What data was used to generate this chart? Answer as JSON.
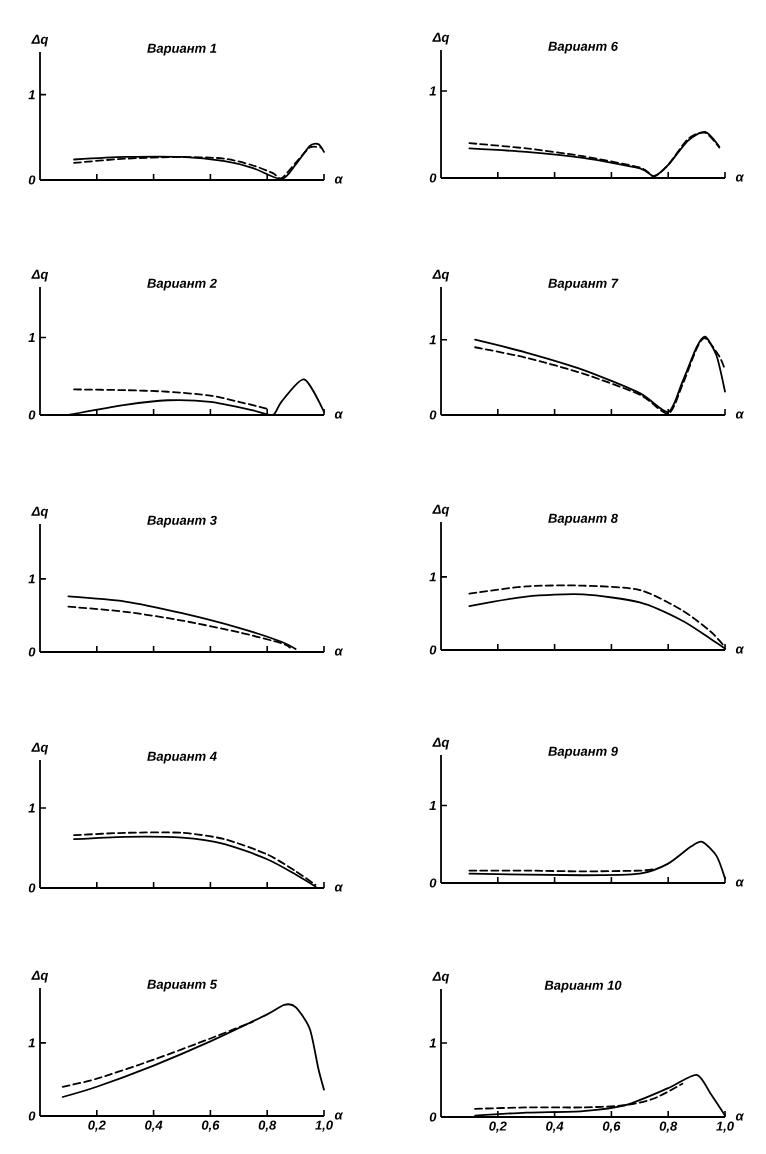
{
  "chart_data": [
    {
      "type": "line",
      "title": "Вариант 1",
      "xlabel": "α",
      "ylabel": "Δq",
      "xlim": [
        0,
        1
      ],
      "ylim": [
        0,
        1.5
      ],
      "xticks": [
        0.2,
        0.4,
        0.6,
        0.8,
        1.0
      ],
      "yticks": [
        0,
        1
      ],
      "tick_labels": "y",
      "series": [
        {
          "color": "#000000",
          "line_style": "solid",
          "x": [
            0.12,
            0.3,
            0.5,
            0.65,
            0.75,
            0.85,
            0.9,
            0.95,
            0.98,
            1.0
          ],
          "values": [
            0.24,
            0.27,
            0.27,
            0.22,
            0.14,
            0.01,
            0.18,
            0.4,
            0.42,
            0.33
          ]
        },
        {
          "color": "#000000",
          "line_style": "dashed",
          "x": [
            0.12,
            0.3,
            0.5,
            0.65,
            0.75,
            0.82,
            0.85,
            0.9,
            0.95,
            0.99
          ],
          "values": [
            0.2,
            0.25,
            0.27,
            0.25,
            0.17,
            0.08,
            0.02,
            0.2,
            0.38,
            0.38
          ]
        }
      ]
    },
    {
      "type": "line",
      "title": "Вариант 2",
      "xlabel": "α",
      "ylabel": "Δq",
      "xlim": [
        0,
        1
      ],
      "ylim": [
        0,
        1.65
      ],
      "xticks": [
        0.2,
        0.4,
        0.6,
        0.8,
        1.0
      ],
      "yticks": [
        0,
        1
      ],
      "tick_labels": "y",
      "series": [
        {
          "color": "#000000",
          "line_style": "solid",
          "x": [
            0.1,
            0.3,
            0.45,
            0.6,
            0.75,
            0.82,
            0.85,
            0.93,
            1.0
          ],
          "values": [
            0,
            0.13,
            0.19,
            0.17,
            0.06,
            0,
            0.17,
            0.46,
            0.04
          ]
        },
        {
          "color": "#000000",
          "line_style": "dashed",
          "x": [
            0.12,
            0.3,
            0.45,
            0.6,
            0.7,
            0.8
          ],
          "values": [
            0.33,
            0.32,
            0.3,
            0.25,
            0.17,
            0.08
          ]
        }
      ]
    },
    {
      "type": "line",
      "title": "Вариант 3",
      "xlabel": "α",
      "ylabel": "Δq",
      "xlim": [
        0,
        1
      ],
      "ylim": [
        0,
        1.75
      ],
      "xticks": [
        0.2,
        0.4,
        0.6,
        0.8,
        1.0
      ],
      "yticks": [
        0,
        1
      ],
      "tick_labels": "y",
      "series": [
        {
          "color": "#000000",
          "line_style": "solid",
          "x": [
            0.1,
            0.3,
            0.5,
            0.7,
            0.85,
            0.9
          ],
          "values": [
            0.76,
            0.69,
            0.53,
            0.33,
            0.14,
            0.04
          ]
        },
        {
          "color": "#000000",
          "line_style": "dashed",
          "x": [
            0.1,
            0.3,
            0.5,
            0.7,
            0.85,
            0.88
          ],
          "values": [
            0.62,
            0.55,
            0.43,
            0.27,
            0.12,
            0.06
          ]
        }
      ]
    },
    {
      "type": "line",
      "title": "Вариант 4",
      "xlabel": "α",
      "ylabel": "Δq",
      "xlim": [
        0,
        1
      ],
      "ylim": [
        0,
        1.6
      ],
      "xticks": [
        0.2,
        0.4,
        0.6,
        0.8,
        1.0
      ],
      "yticks": [
        0,
        1
      ],
      "tick_labels": "y",
      "series": [
        {
          "color": "#000000",
          "line_style": "solid",
          "x": [
            0.12,
            0.3,
            0.5,
            0.65,
            0.8,
            0.9,
            0.97
          ],
          "values": [
            0.61,
            0.64,
            0.63,
            0.55,
            0.36,
            0.17,
            0.02
          ]
        },
        {
          "color": "#000000",
          "line_style": "dashed",
          "x": [
            0.12,
            0.3,
            0.5,
            0.65,
            0.8,
            0.9,
            0.97
          ],
          "values": [
            0.66,
            0.69,
            0.69,
            0.61,
            0.42,
            0.21,
            0.04
          ]
        }
      ]
    },
    {
      "type": "line",
      "title": "Вариант 5",
      "xlabel": "α",
      "ylabel": "Δq",
      "xlim": [
        0,
        1
      ],
      "ylim": [
        0,
        1.75
      ],
      "xticks": [
        {
          "value": 0.2,
          "label": "0,2"
        },
        {
          "value": 0.4,
          "label": "0,4"
        },
        {
          "value": 0.6,
          "label": "0,6"
        },
        {
          "value": 0.8,
          "label": "0,8"
        },
        {
          "value": 1.0,
          "label": "1,0"
        }
      ],
      "yticks": [
        0,
        1
      ],
      "series": [
        {
          "color": "#000000",
          "line_style": "solid",
          "x": [
            0.08,
            0.2,
            0.4,
            0.6,
            0.8,
            0.86,
            0.9,
            0.95,
            0.98,
            1.0
          ],
          "values": [
            0.26,
            0.4,
            0.69,
            1.02,
            1.39,
            1.52,
            1.49,
            1.19,
            0.65,
            0.36
          ]
        },
        {
          "color": "#000000",
          "line_style": "dashed",
          "x": [
            0.08,
            0.2,
            0.4,
            0.6,
            0.75
          ],
          "values": [
            0.4,
            0.51,
            0.77,
            1.06,
            1.29
          ]
        }
      ]
    },
    {
      "type": "line",
      "title": "Вариант 6",
      "xlabel": "α",
      "ylabel": "Δq",
      "xlim": [
        0,
        1
      ],
      "ylim": [
        0,
        1.47
      ],
      "xticks": [
        0.2,
        0.4,
        0.6,
        0.8,
        1.0
      ],
      "yticks": [
        0,
        1
      ],
      "tick_labels": "y",
      "series": [
        {
          "color": "#000000",
          "line_style": "solid",
          "x": [
            0.1,
            0.3,
            0.5,
            0.7,
            0.75,
            0.8,
            0.87,
            0.93,
            0.98
          ],
          "values": [
            0.34,
            0.3,
            0.23,
            0.11,
            0.02,
            0.15,
            0.43,
            0.53,
            0.36
          ]
        },
        {
          "color": "#000000",
          "line_style": "dashed",
          "x": [
            0.1,
            0.3,
            0.5,
            0.7,
            0.75,
            0.8,
            0.87,
            0.93,
            0.98
          ],
          "values": [
            0.4,
            0.34,
            0.25,
            0.12,
            0.02,
            0.15,
            0.45,
            0.52,
            0.35
          ]
        }
      ]
    },
    {
      "type": "line",
      "title": "Вариант 7",
      "xlabel": "α",
      "ylabel": "Δq",
      "xlim": [
        0,
        1
      ],
      "ylim": [
        0,
        1.7
      ],
      "xticks": [
        0.2,
        0.4,
        0.6,
        0.8,
        1.0
      ],
      "yticks": [
        0,
        1
      ],
      "tick_labels": "y",
      "series": [
        {
          "color": "#000000",
          "line_style": "solid",
          "x": [
            0.12,
            0.3,
            0.5,
            0.7,
            0.8,
            0.85,
            0.9,
            0.93,
            0.97,
            1.0
          ],
          "values": [
            1.0,
            0.83,
            0.6,
            0.29,
            0.04,
            0.44,
            0.9,
            1.04,
            0.79,
            0.31
          ]
        },
        {
          "color": "#000000",
          "line_style": "dashed",
          "x": [
            0.12,
            0.3,
            0.5,
            0.7,
            0.8,
            0.85,
            0.9,
            0.93,
            0.98,
            1.0
          ],
          "values": [
            0.9,
            0.76,
            0.55,
            0.27,
            0.02,
            0.4,
            0.88,
            1.02,
            0.78,
            0.6
          ]
        }
      ]
    },
    {
      "type": "line",
      "title": "Вариант 8",
      "xlabel": "α",
      "ylabel": "Δq",
      "xlim": [
        0,
        1
      ],
      "ylim": [
        0,
        1.75
      ],
      "xticks": [
        0.2,
        0.4,
        0.6,
        0.8,
        1.0
      ],
      "yticks": [
        0,
        1
      ],
      "tick_labels": "y",
      "series": [
        {
          "color": "#000000",
          "line_style": "solid",
          "x": [
            0.1,
            0.3,
            0.5,
            0.7,
            0.85,
            0.95,
            1.0
          ],
          "values": [
            0.6,
            0.73,
            0.76,
            0.65,
            0.4,
            0.15,
            0.02
          ]
        },
        {
          "color": "#000000",
          "line_style": "dashed",
          "x": [
            0.1,
            0.3,
            0.5,
            0.7,
            0.85,
            0.95,
            1.0
          ],
          "values": [
            0.77,
            0.87,
            0.88,
            0.82,
            0.54,
            0.25,
            0.04
          ]
        }
      ]
    },
    {
      "type": "line",
      "title": "Вариант 9",
      "xlabel": "α",
      "ylabel": "Δq",
      "xlim": [
        0,
        1
      ],
      "ylim": [
        0,
        1.65
      ],
      "xticks": [
        0.2,
        0.4,
        0.6,
        0.8,
        1.0
      ],
      "yticks": [
        0,
        1
      ],
      "tick_labels": "y",
      "series": [
        {
          "color": "#000000",
          "line_style": "solid",
          "x": [
            0.1,
            0.5,
            0.7,
            0.8,
            0.88,
            0.92,
            0.97,
            1.0
          ],
          "values": [
            0.12,
            0.1,
            0.12,
            0.25,
            0.47,
            0.53,
            0.35,
            0.06
          ]
        },
        {
          "color": "#000000",
          "line_style": "dashed",
          "x": [
            0.1,
            0.3,
            0.5,
            0.7,
            0.75
          ],
          "values": [
            0.16,
            0.16,
            0.15,
            0.16,
            0.18
          ]
        }
      ]
    },
    {
      "type": "line",
      "title": "Вариант 10",
      "xlabel": "α",
      "ylabel": "Δq",
      "xlim": [
        0,
        1
      ],
      "ylim": [
        0,
        1.73
      ],
      "xticks": [
        {
          "value": 0.2,
          "label": "0,2"
        },
        {
          "value": 0.4,
          "label": "0,4"
        },
        {
          "value": 0.6,
          "label": "0,6"
        },
        {
          "value": 0.8,
          "label": "0,8"
        },
        {
          "value": 1.0,
          "label": "1,0"
        }
      ],
      "yticks": [
        0,
        1
      ],
      "series": [
        {
          "color": "#000000",
          "line_style": "solid",
          "x": [
            0.12,
            0.3,
            0.5,
            0.65,
            0.8,
            0.9,
            0.95,
            1.0
          ],
          "values": [
            0.02,
            0.06,
            0.08,
            0.16,
            0.39,
            0.57,
            0.31,
            0.02
          ]
        },
        {
          "color": "#000000",
          "line_style": "dashed",
          "x": [
            0.12,
            0.3,
            0.5,
            0.65,
            0.75,
            0.85
          ],
          "values": [
            0.11,
            0.13,
            0.13,
            0.16,
            0.25,
            0.45
          ]
        }
      ]
    }
  ]
}
